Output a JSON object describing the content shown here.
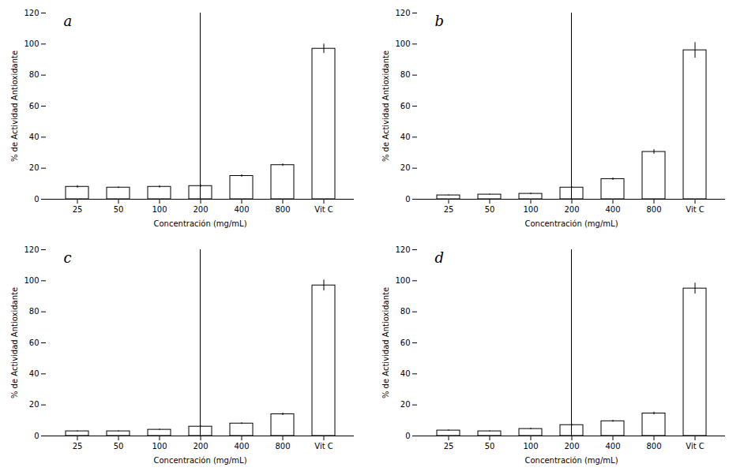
{
  "chart_data": [
    {
      "type": "bar",
      "title": "a",
      "categories": [
        "25",
        "50",
        "100",
        "200",
        "400",
        "800",
        "Vit C"
      ],
      "values": [
        8.0,
        7.5,
        8.0,
        8.5,
        15.0,
        22.0,
        97.0
      ],
      "errors": [
        0.8,
        0.5,
        0.7,
        0.8,
        0.8,
        0.8,
        3.0
      ],
      "xlabel": "Concentración (mg/mL)",
      "ylabel": "% de Actividad Antioxidante",
      "ylim": [
        0,
        120
      ],
      "yticks": [
        0,
        20,
        40,
        60,
        80,
        100,
        120
      ],
      "color": "white"
    },
    {
      "type": "bar",
      "title": "b",
      "categories": [
        "25",
        "50",
        "100",
        "200",
        "400",
        "800",
        "Vit C"
      ],
      "values": [
        2.5,
        3.0,
        3.5,
        7.5,
        13.0,
        30.5,
        96.0
      ],
      "errors": [
        0.3,
        0.3,
        0.5,
        0.4,
        0.8,
        1.5,
        5.0
      ],
      "xlabel": "Concentración (mg/mL)",
      "ylabel": "% de Actividad Antioxidante",
      "ylim": [
        0,
        120
      ],
      "yticks": [
        0,
        20,
        40,
        60,
        80,
        100,
        120
      ],
      "color": "white"
    },
    {
      "type": "bar",
      "title": "c",
      "categories": [
        "25",
        "50",
        "100",
        "200",
        "400",
        "800",
        "Vit C"
      ],
      "values": [
        3.0,
        3.0,
        4.0,
        6.0,
        8.0,
        14.0,
        97.0
      ],
      "errors": [
        0.3,
        0.3,
        0.4,
        0.5,
        0.5,
        0.8,
        3.5
      ],
      "xlabel": "Concentración (mg/mL)",
      "ylabel": "% de Actividad Antioxidante",
      "ylim": [
        0,
        120
      ],
      "yticks": [
        0,
        20,
        40,
        60,
        80,
        100,
        120
      ],
      "color": "white"
    },
    {
      "type": "bar",
      "title": "d",
      "categories": [
        "25",
        "50",
        "100",
        "200",
        "400",
        "800",
        "Vit C"
      ],
      "values": [
        3.5,
        3.0,
        4.5,
        7.0,
        9.5,
        14.5,
        95.0
      ],
      "errors": [
        0.4,
        0.3,
        0.5,
        0.5,
        0.6,
        0.9,
        3.5
      ],
      "xlabel": "Concentración (mg/mL)",
      "ylabel": "% de Actividad Antioxidante",
      "ylim": [
        0,
        120
      ],
      "yticks": [
        0,
        20,
        40,
        60,
        80,
        100,
        120
      ],
      "color": "white"
    }
  ]
}
